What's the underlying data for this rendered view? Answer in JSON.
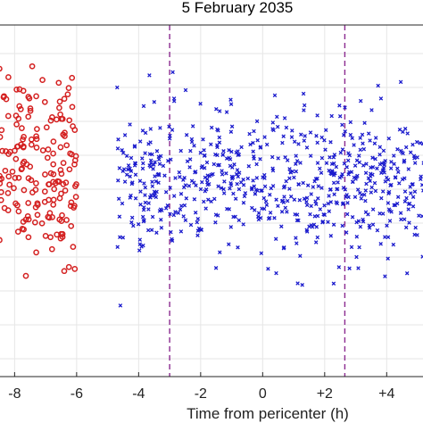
{
  "chart_data": {
    "type": "scatter",
    "title": "5 February 2035",
    "xlabel": "Time from pericenter (h)",
    "ylabel": "",
    "xlim": [
      -8.5,
      5.2
    ],
    "ylim": [
      0,
      1
    ],
    "grid": true,
    "x_ticks": [
      {
        "value": -8,
        "label": "-8"
      },
      {
        "value": -6,
        "label": "-6"
      },
      {
        "value": -4,
        "label": "-4"
      },
      {
        "value": -2,
        "label": "-2"
      },
      {
        "value": 0,
        "label": "0"
      },
      {
        "value": 2,
        "label": "+2"
      },
      {
        "value": 4,
        "label": "+4"
      }
    ],
    "vlines": [
      {
        "x": -3.0,
        "color": "#8b2a8f",
        "style": "dashed"
      },
      {
        "x": 2.65,
        "color": "#8b2a8f",
        "style": "dashed"
      }
    ],
    "series": [
      {
        "marker": "circle",
        "color": "#d42020",
        "x_range": [
          -8.5,
          -6.0
        ],
        "y_center": 0.6,
        "y_spread": 0.13,
        "count": 180
      },
      {
        "marker": "x",
        "color": "#1a1acd",
        "x_range": [
          -4.7,
          5.2
        ],
        "y_center": 0.55,
        "y_spread": 0.1,
        "count": 700
      }
    ]
  }
}
